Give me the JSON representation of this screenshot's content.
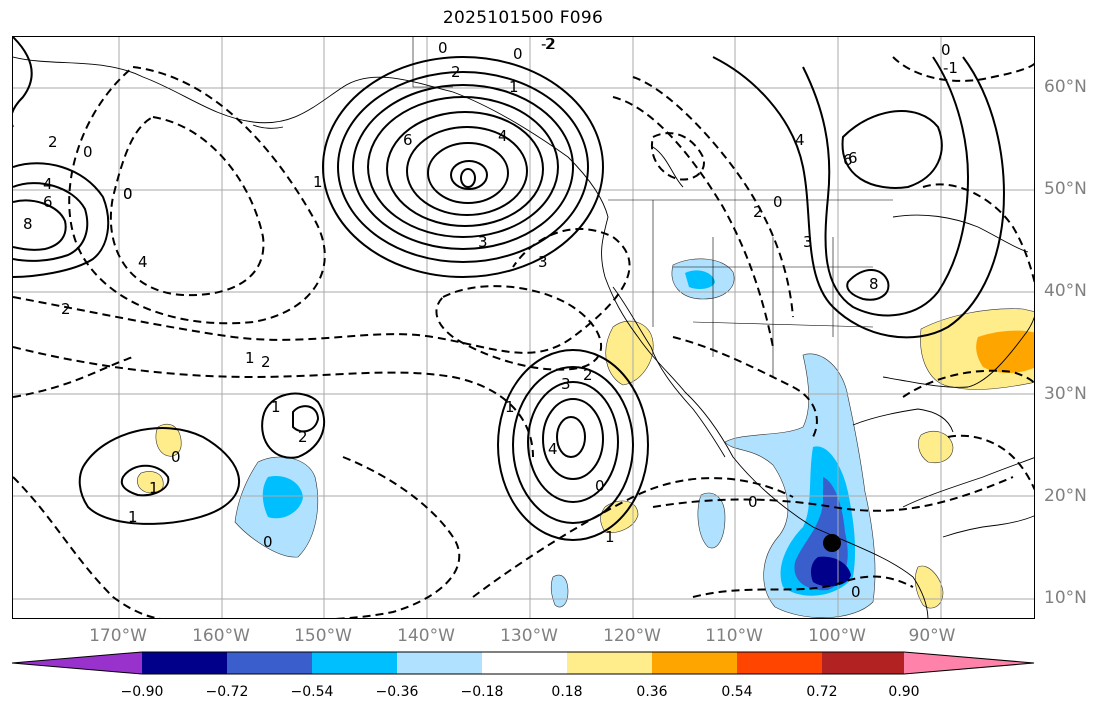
{
  "title": "2025101500 F096",
  "latitude_labels": [
    "60°N",
    "50°N",
    "40°N",
    "30°N",
    "20°N",
    "10°N"
  ],
  "longitude_labels": [
    "170°W",
    "160°W",
    "150°W",
    "140°W",
    "130°W",
    "120°W",
    "110°W",
    "100°W",
    "90°W"
  ],
  "colorbar": {
    "ticks": [
      "−0.90",
      "−0.72",
      "−0.54",
      "−0.36",
      "−0.18",
      "0.18",
      "0.36",
      "0.54",
      "0.72",
      "0.90"
    ],
    "colors": [
      "#9932cc",
      "#00008b",
      "#3a5fcd",
      "#00bfff",
      "#b0e2ff",
      "#ffffff",
      "#ffec8b",
      "#ffa500",
      "#ff4500",
      "#b22222",
      "#ff82ab"
    ]
  },
  "contour_labels": [
    "0",
    "2",
    "0",
    "4",
    "6",
    "8",
    "6",
    "4",
    "3",
    "2",
    "1",
    "3",
    "4",
    "2",
    "1",
    "0",
    "0",
    "1",
    "2",
    "3",
    "0",
    "1",
    "4",
    "6",
    "8",
    "3",
    "6",
    "4",
    "2",
    "0",
    "0",
    "2",
    "-2",
    "-1",
    "1",
    "2",
    "2",
    "1",
    "0",
    "0",
    "0",
    "0",
    "1",
    "0",
    "1"
  ],
  "marker": {
    "type": "point",
    "color": "#000000"
  }
}
